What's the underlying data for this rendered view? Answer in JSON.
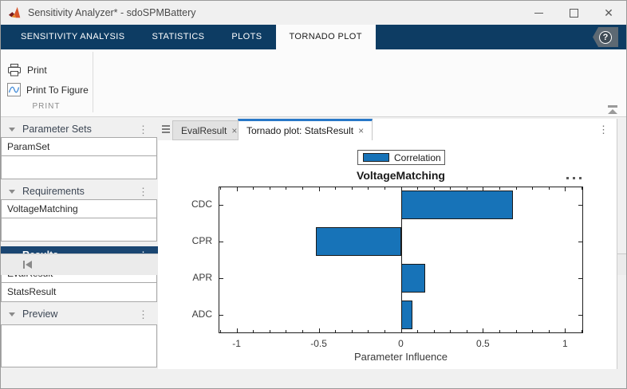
{
  "window": {
    "title": "Sensitivity Analyzer* - sdoSPMBattery",
    "close_glyph": "✕"
  },
  "ribbon": {
    "tabs": [
      {
        "label": "SENSITIVITY ANALYSIS",
        "active": false
      },
      {
        "label": "STATISTICS",
        "active": false
      },
      {
        "label": "PLOTS",
        "active": false
      },
      {
        "label": "TORNADO PLOT",
        "active": true
      }
    ],
    "help_label": "?",
    "toolbar": {
      "print_label": "Print",
      "print_to_figure_label": "Print To Figure",
      "section_label": "PRINT"
    }
  },
  "sidebar": {
    "panels": [
      {
        "title": "Parameter Sets",
        "items": [
          "ParamSet"
        ],
        "selected": false,
        "menu_glyph": "⋮"
      },
      {
        "title": "Requirements",
        "items": [
          "VoltageMatching"
        ],
        "selected": false,
        "menu_glyph": "⋮"
      },
      {
        "title": "Results",
        "items": [
          "EvalResult",
          "StatsResult"
        ],
        "selected": true,
        "menu_glyph": "⋮"
      },
      {
        "title": "Preview",
        "items": [],
        "selected": false,
        "menu_glyph": "⋮"
      }
    ]
  },
  "document": {
    "tabs": [
      {
        "label": "EvalResult",
        "close": "×",
        "active": false
      },
      {
        "label": "Tornado plot: StatsResult",
        "close": "×",
        "active": true
      }
    ],
    "strip_menu_glyph": "⋮"
  },
  "chart_data": {
    "type": "bar",
    "orientation": "horizontal",
    "title": "VoltageMatching",
    "legend_entries": [
      "Correlation"
    ],
    "legend_position": "top-center",
    "categories": [
      "CDC",
      "CPR",
      "APR",
      "ADC"
    ],
    "values": [
      0.68,
      -0.52,
      0.15,
      0.07
    ],
    "series_name": "Correlation",
    "xlabel": "Parameter Influence",
    "ylabel": "",
    "xlim": [
      -1.11,
      1.11
    ],
    "xticks": [
      -1,
      -0.5,
      0,
      0.5,
      1
    ],
    "xtick_labels": [
      "-1",
      "-0.5",
      "0",
      "0.5",
      "1"
    ],
    "minor_tick_step": 0.1,
    "grid": false,
    "box": true,
    "bar_width_fraction": 0.78
  },
  "colors": {
    "ribbon_navy": "#0d3c63",
    "selected_panel_navy": "#1a4672",
    "active_tab_accent": "#2878c8",
    "bar_fill": "#1773b8",
    "bar_edge": "#191919",
    "curve_icon_blue": "#4a90d9"
  },
  "icons": {
    "titlebar": "matlab-logo",
    "window": [
      "minimize-icon",
      "maximize-icon",
      "close-icon"
    ],
    "help": "question-mark-badge",
    "toolbar": [
      "printer-icon",
      "print-to-figure-icon",
      "collapse-ribbon-icon"
    ],
    "panel_header": [
      "collapse-triangle-icon",
      "kebab-menu-icon"
    ],
    "doc_strip": [
      "tab-list-icon",
      "kebab-menu-icon"
    ],
    "chart": "ellipsis-menu-icon",
    "statusbar": "collapse-left-panel-icon"
  }
}
